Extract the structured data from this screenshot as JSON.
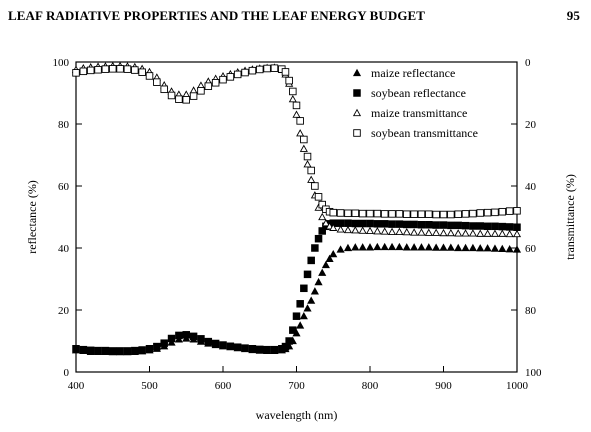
{
  "running_head": {
    "title": "LEAF RADIATIVE PROPERTIES AND THE LEAF ENERGY BUDGET",
    "page": "95"
  },
  "chart_data": {
    "type": "scatter",
    "xlabel": "wavelength (nm)",
    "ylabel": "reflectance (%)",
    "y2label": "transmittance (%)",
    "xlim": [
      400,
      1000
    ],
    "ylim": [
      0,
      100
    ],
    "y2lim": [
      100,
      0
    ],
    "y2_reversed": true,
    "x_ticks": [
      "400",
      "500",
      "600",
      "700",
      "800",
      "900",
      "1000"
    ],
    "y_ticks": [
      "0",
      "20",
      "40",
      "60",
      "80",
      "100"
    ],
    "y2_ticks": [
      "100",
      "80",
      "60",
      "40",
      "20",
      "0"
    ],
    "grid": false,
    "legend_position": "top-right",
    "series": [
      {
        "name": "maize reflectance",
        "marker": "filled-triangle",
        "axis": "left",
        "x": [
          400,
          410,
          420,
          430,
          440,
          450,
          460,
          470,
          480,
          490,
          500,
          510,
          520,
          530,
          540,
          550,
          560,
          570,
          580,
          590,
          600,
          610,
          620,
          630,
          640,
          650,
          660,
          670,
          680,
          685,
          690,
          695,
          700,
          705,
          710,
          715,
          720,
          725,
          730,
          735,
          740,
          745,
          750,
          760,
          770,
          780,
          790,
          800,
          810,
          820,
          830,
          840,
          850,
          860,
          870,
          880,
          890,
          900,
          910,
          920,
          930,
          940,
          950,
          960,
          970,
          980,
          990,
          1000
        ],
        "y": [
          7,
          6.8,
          6.5,
          6.5,
          6.5,
          6.4,
          6.4,
          6.4,
          6.5,
          6.7,
          7,
          7.5,
          8.3,
          9.5,
          10.5,
          10.8,
          10.5,
          9.8,
          9.2,
          8.7,
          8.3,
          8,
          7.7,
          7.4,
          7.1,
          6.9,
          6.8,
          6.8,
          7,
          7.4,
          8.3,
          10,
          12.5,
          15,
          18,
          20.5,
          23,
          26,
          29,
          32,
          34.5,
          36.5,
          38,
          39.5,
          40,
          40.2,
          40.2,
          40.2,
          40.3,
          40.3,
          40.3,
          40.3,
          40.2,
          40.2,
          40.2,
          40.2,
          40.1,
          40.1,
          40.1,
          40,
          40,
          40,
          39.9,
          39.9,
          39.8,
          39.7,
          39.6,
          39.5
        ]
      },
      {
        "name": "soybean reflectance",
        "marker": "filled-square",
        "axis": "left",
        "x": [
          400,
          410,
          420,
          430,
          440,
          450,
          460,
          470,
          480,
          490,
          500,
          510,
          520,
          530,
          540,
          550,
          560,
          570,
          580,
          590,
          600,
          610,
          620,
          630,
          640,
          650,
          660,
          670,
          680,
          685,
          690,
          695,
          700,
          705,
          710,
          715,
          720,
          725,
          730,
          735,
          740,
          745,
          750,
          760,
          770,
          780,
          790,
          800,
          810,
          820,
          830,
          840,
          850,
          860,
          870,
          880,
          890,
          900,
          910,
          920,
          930,
          940,
          950,
          960,
          970,
          980,
          990,
          1000
        ],
        "y": [
          7.5,
          7.2,
          7,
          6.9,
          6.9,
          6.8,
          6.8,
          6.8,
          6.9,
          7.1,
          7.5,
          8.2,
          9.3,
          10.8,
          11.8,
          12,
          11.5,
          10.7,
          9.8,
          9.2,
          8.7,
          8.3,
          8,
          7.7,
          7.5,
          7.3,
          7.2,
          7.2,
          7.5,
          8.2,
          10,
          13.5,
          18,
          22,
          27,
          31.5,
          36,
          40,
          43,
          45.5,
          47,
          47.8,
          48,
          48,
          48,
          47.9,
          47.9,
          47.9,
          47.8,
          47.8,
          47.7,
          47.7,
          47.6,
          47.6,
          47.5,
          47.5,
          47.4,
          47.4,
          47.3,
          47.3,
          47.2,
          47.1,
          47.1,
          47,
          47,
          46.9,
          46.8,
          46.7
        ]
      },
      {
        "name": "maize transmittance",
        "marker": "open-triangle",
        "axis": "right",
        "x": [
          400,
          410,
          420,
          430,
          440,
          450,
          460,
          470,
          480,
          490,
          500,
          510,
          520,
          530,
          540,
          550,
          560,
          570,
          580,
          590,
          600,
          610,
          620,
          630,
          640,
          650,
          660,
          670,
          680,
          685,
          690,
          695,
          700,
          705,
          710,
          715,
          720,
          725,
          730,
          735,
          740,
          745,
          750,
          760,
          770,
          780,
          790,
          800,
          810,
          820,
          830,
          840,
          850,
          860,
          870,
          880,
          890,
          900,
          910,
          920,
          930,
          940,
          950,
          960,
          970,
          980,
          990,
          1000
        ],
        "y": [
          2.5,
          2,
          1.7,
          1.5,
          1.4,
          1.3,
          1.3,
          1.4,
          1.6,
          2.2,
          3.2,
          5,
          7.5,
          9.5,
          10.5,
          10.5,
          9.2,
          7.6,
          6.3,
          5.4,
          4.6,
          3.9,
          3.3,
          2.8,
          2.4,
          2.1,
          1.9,
          1.8,
          2.5,
          4,
          7,
          12,
          17,
          23,
          28,
          33,
          38,
          43,
          47,
          50,
          52,
          53,
          53.5,
          54,
          54.2,
          54.3,
          54.4,
          54.5,
          54.6,
          54.7,
          54.8,
          54.8,
          54.9,
          55,
          55,
          55.1,
          55.1,
          55.2,
          55.2,
          55.3,
          55.3,
          55.3,
          55.4,
          55.4,
          55.4,
          55.4,
          55.5,
          55.5
        ]
      },
      {
        "name": "soybean transmittance",
        "marker": "open-square",
        "axis": "right",
        "x": [
          400,
          410,
          420,
          430,
          440,
          450,
          460,
          470,
          480,
          490,
          500,
          510,
          520,
          530,
          540,
          550,
          560,
          570,
          580,
          590,
          600,
          610,
          620,
          630,
          640,
          650,
          660,
          670,
          680,
          685,
          690,
          695,
          700,
          705,
          710,
          715,
          720,
          725,
          730,
          735,
          740,
          745,
          750,
          760,
          770,
          780,
          790,
          800,
          810,
          820,
          830,
          840,
          850,
          860,
          870,
          880,
          890,
          900,
          910,
          920,
          930,
          940,
          950,
          960,
          970,
          980,
          990,
          1000
        ],
        "y": [
          3.5,
          3,
          2.7,
          2.5,
          2.3,
          2.2,
          2.2,
          2.3,
          2.6,
          3.3,
          4.5,
          6.5,
          8.8,
          10.8,
          12,
          12.2,
          11,
          9.3,
          7.8,
          6.7,
          5.7,
          4.8,
          4,
          3.4,
          2.8,
          2.4,
          2.1,
          2,
          2.3,
          3.2,
          6,
          9.5,
          14,
          19,
          25,
          30.5,
          35,
          40,
          43.5,
          46,
          47.5,
          48.3,
          48.6,
          48.7,
          48.8,
          48.8,
          48.9,
          48.9,
          48.9,
          49,
          49,
          49,
          49.1,
          49.1,
          49.1,
          49.1,
          49.2,
          49.2,
          49.2,
          49.1,
          49,
          48.9,
          48.7,
          48.6,
          48.5,
          48.3,
          48.1,
          48
        ]
      }
    ]
  }
}
